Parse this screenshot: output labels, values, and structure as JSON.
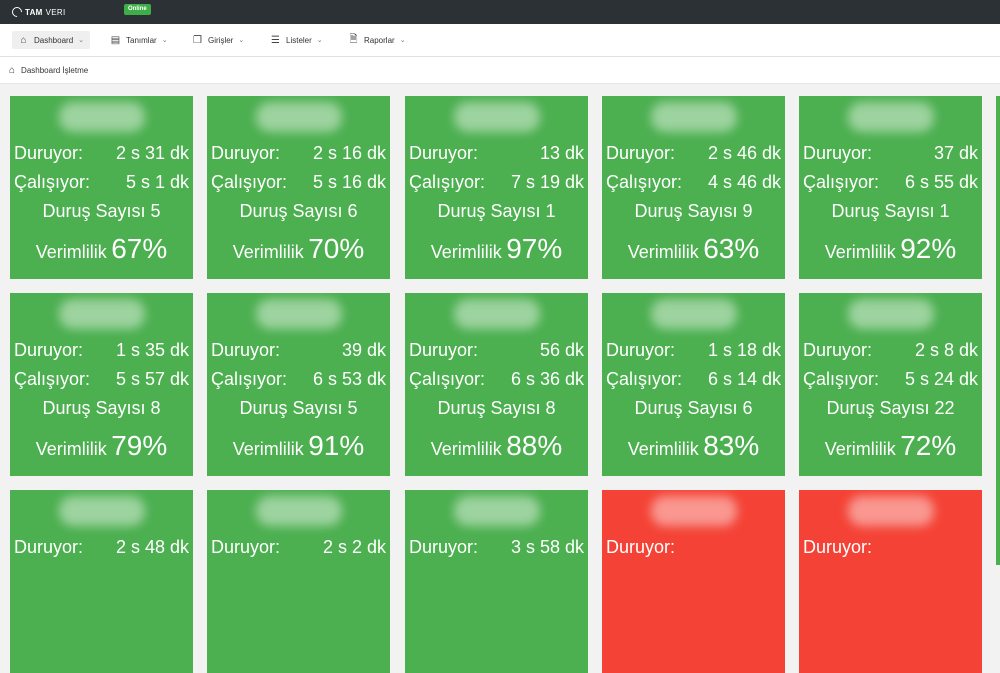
{
  "app": {
    "brand_bold": "TAM",
    "brand_rest": "VERI",
    "status": "Online"
  },
  "nav": [
    {
      "label": "Dashboard",
      "icon": "home-icon"
    },
    {
      "label": "Tanımlar",
      "icon": "list-box-icon"
    },
    {
      "label": "Girişler",
      "icon": "copy-icon"
    },
    {
      "label": "Listeler",
      "icon": "list-icon"
    },
    {
      "label": "Raporlar",
      "icon": "document-icon"
    }
  ],
  "breadcrumb": "Dashboard İşletme",
  "labels": {
    "stopped": "Duruyor:",
    "running": "Çalışıyor:",
    "stop_count": "Duruş Sayısı",
    "efficiency": "Verimlilik"
  },
  "colors": {
    "ok": "#4caf50",
    "alert": "#f44336"
  },
  "machines": [
    {
      "stopped": "2 s 31 dk",
      "running": "5 s 1 dk",
      "stops": "5",
      "eff": "67%"
    },
    {
      "stopped": "2 s 16 dk",
      "running": "5 s 16 dk",
      "stops": "6",
      "eff": "70%"
    },
    {
      "stopped": "13 dk",
      "running": "7 s 19 dk",
      "stops": "1",
      "eff": "97%"
    },
    {
      "stopped": "2 s 46 dk",
      "running": "4 s 46 dk",
      "stops": "9",
      "eff": "63%"
    },
    {
      "stopped": "37 dk",
      "running": "6 s 55 dk",
      "stops": "1",
      "eff": "92%"
    },
    {
      "stopped": "1 s 35 dk",
      "running": "5 s 57 dk",
      "stops": "8",
      "eff": "79%"
    },
    {
      "stopped": "39 dk",
      "running": "6 s 53 dk",
      "stops": "5",
      "eff": "91%"
    },
    {
      "stopped": "56 dk",
      "running": "6 s 36 dk",
      "stops": "8",
      "eff": "88%"
    },
    {
      "stopped": "1 s 18 dk",
      "running": "6 s 14 dk",
      "stops": "6",
      "eff": "83%"
    },
    {
      "stopped": "2 s 8 dk",
      "running": "5 s 24 dk",
      "stops": "22",
      "eff": "72%"
    },
    {
      "stopped": "2 s 48 dk"
    },
    {
      "stopped": "2 s 2 dk"
    },
    {
      "stopped": "3 s 58 dk"
    },
    {
      "stopped": "",
      "state": "alert"
    },
    {
      "stopped": "",
      "state": "alert"
    }
  ]
}
